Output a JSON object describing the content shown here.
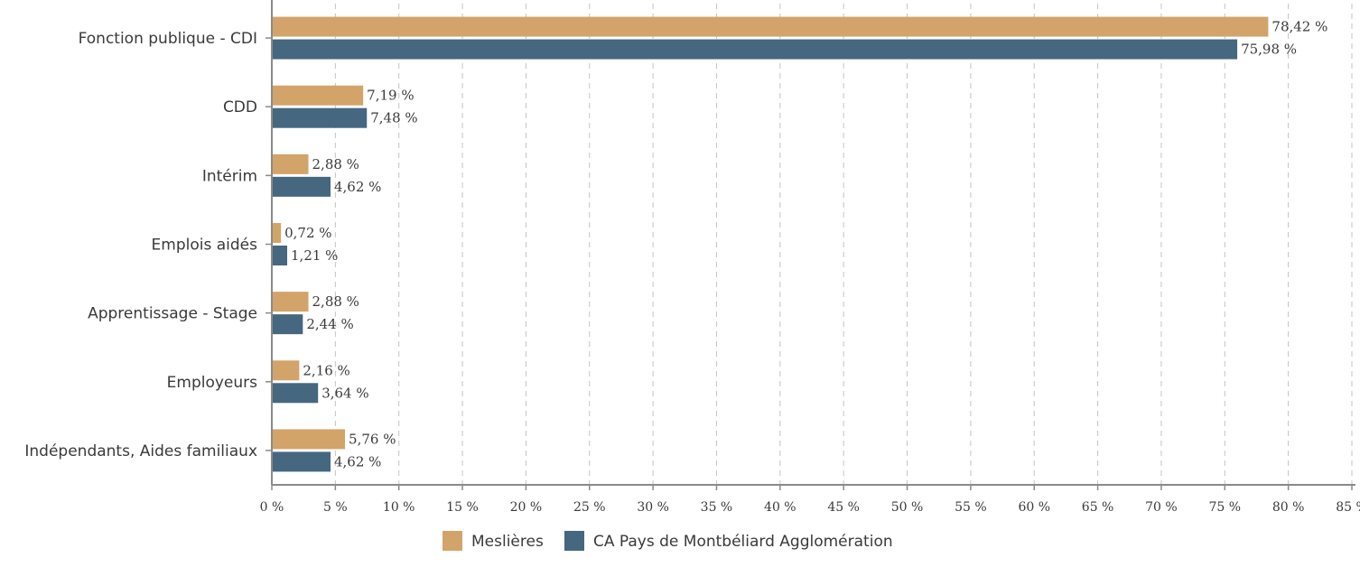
{
  "chart_data": {
    "type": "bar",
    "orientation": "horizontal",
    "categories": [
      "Fonction publique - CDI",
      "CDD",
      "Intérim",
      "Emplois aidés",
      "Apprentissage - Stage",
      "Employeurs",
      "Indépendants, Aides familiaux"
    ],
    "series": [
      {
        "name": "Meslières",
        "color": "#D2A46A",
        "values": [
          78.42,
          7.19,
          2.88,
          0.72,
          2.88,
          2.16,
          5.76
        ],
        "labels": [
          "78,42 %",
          "7,19 %",
          "2,88 %",
          "0,72 %",
          "2,88 %",
          "2,16 %",
          "5,76 %"
        ]
      },
      {
        "name": "CA Pays de Montbéliard Agglomération",
        "color": "#45677F",
        "values": [
          75.98,
          7.48,
          4.62,
          1.21,
          2.44,
          3.64,
          4.62
        ],
        "labels": [
          "75,98 %",
          "7,48 %",
          "4,62 %",
          "1,21 %",
          "2,44 %",
          "3,64 %",
          "4,62 %"
        ]
      }
    ],
    "xlim": [
      0,
      85
    ],
    "x_ticks": [
      0,
      5,
      10,
      15,
      20,
      25,
      30,
      35,
      40,
      45,
      50,
      55,
      60,
      65,
      70,
      75,
      80,
      85
    ],
    "x_tick_labels": [
      "0 %",
      "5 %",
      "10 %",
      "15 %",
      "20 %",
      "25 %",
      "30 %",
      "35 %",
      "40 %",
      "45 %",
      "50 %",
      "55 %",
      "60 %",
      "65 %",
      "70 %",
      "75 %",
      "80 %",
      "85 %"
    ],
    "grid": "vertical dashed",
    "legend_position": "bottom"
  }
}
